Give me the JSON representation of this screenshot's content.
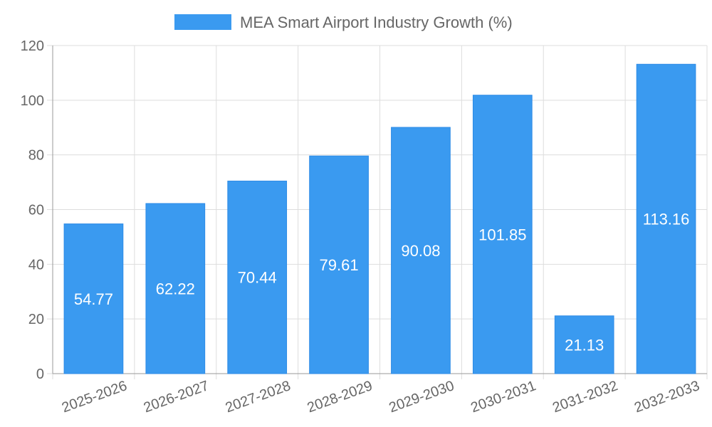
{
  "chart_data": {
    "type": "bar",
    "categories": [
      "2025-2026",
      "2026-2027",
      "2027-2028",
      "2028-2029",
      "2029-2030",
      "2030-2031",
      "2031-2032",
      "2032-2033"
    ],
    "series": [
      {
        "name": "MEA Smart Airport Industry Growth (%)",
        "values": [
          54.77,
          62.22,
          70.44,
          79.61,
          90.08,
          101.85,
          21.13,
          113.16
        ],
        "data_labels": [
          "54.77",
          "62.22",
          "70.44",
          "79.61",
          "90.08",
          "101.85",
          "21.13",
          "113.16"
        ]
      }
    ],
    "ylim": [
      0,
      120
    ],
    "y_ticks": [
      0,
      20,
      40,
      60,
      80,
      100,
      120
    ],
    "y_tick_labels": [
      "0",
      "20",
      "40",
      "60",
      "80",
      "100",
      "120"
    ],
    "xlabel": "",
    "ylabel": "",
    "grid": true,
    "legend_position": "top-center",
    "colors": {
      "bar": "#3a9af0",
      "bar_border": "#2d8be6",
      "grid": "#dddddd",
      "axis": "#999999",
      "text": "#666666",
      "label": "#ffffff"
    }
  }
}
